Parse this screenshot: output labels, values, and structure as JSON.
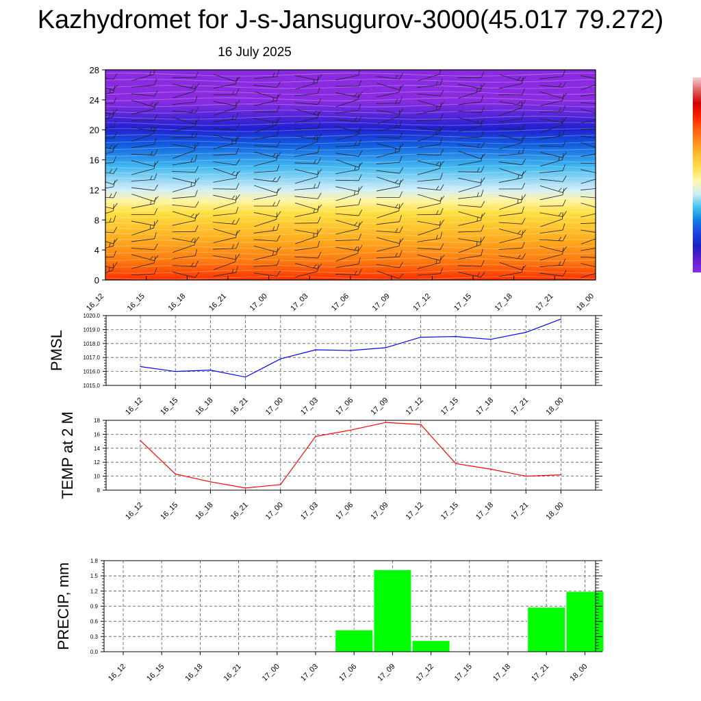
{
  "title": "Kazhydromet for J-s-Jansugurov-3000(45.017 79.272)",
  "subtitle": "16 July 2025",
  "time_labels": [
    "16_12",
    "16_15",
    "16_18",
    "16_21",
    "17_00",
    "17_03",
    "17_06",
    "17_09",
    "17_12",
    "17_15",
    "17_18",
    "17_21",
    "18_00"
  ],
  "colors": {
    "pmsl_line": "#0000ff",
    "temp_line": "#ff0000",
    "precip_bar": "#00ff00",
    "grid": "#555555"
  },
  "chart_data": [
    {
      "type": "heatmap",
      "description_ref": "height-time section",
      "x": [
        "16_12",
        "16_15",
        "16_18",
        "16_21",
        "17_00",
        "17_03",
        "17_06",
        "17_09",
        "17_12",
        "17_15",
        "17_18",
        "17_21",
        "18_00"
      ],
      "ylim": [
        0,
        28
      ],
      "yticks": [
        "0",
        "4",
        "8",
        "12",
        "16",
        "20",
        "24",
        "28"
      ],
      "color_bands_bottom_to_top": [
        "#ff3000",
        "#ff7a10",
        "#ffb020",
        "#ffe040",
        "#fff4a0",
        "#d0eef8",
        "#40b8f0",
        "#1060e0",
        "#2020d0",
        "#8a2be2"
      ],
      "colorbar_colors_top_to_bottom": [
        "#f4d0d0",
        "#e06060",
        "#d00000",
        "#ff2000",
        "#ff6010",
        "#ff9020",
        "#ffc030",
        "#ffe050",
        "#fff8b0",
        "#c8ecf8",
        "#40c0f0",
        "#1080e0",
        "#2040e0",
        "#2020c0",
        "#6020d0",
        "#8a2be2"
      ]
    },
    {
      "type": "line",
      "ylabel": "PMSL",
      "ylim": [
        1015.0,
        1020.0
      ],
      "yticks": [
        "1015.0",
        "1016.0",
        "1017.0",
        "1018.0",
        "1019.0",
        "1020.0"
      ],
      "x": [
        "16_12",
        "16_15",
        "16_18",
        "16_21",
        "17_00",
        "17_03",
        "17_06",
        "17_09",
        "17_12",
        "17_15",
        "17_18",
        "17_21",
        "18_00"
      ],
      "series": [
        {
          "values": [
            1016.35,
            1016.0,
            1016.1,
            1015.6,
            1016.9,
            1017.55,
            1017.5,
            1017.7,
            1018.45,
            1018.5,
            1018.3,
            1018.8,
            1019.75
          ]
        }
      ],
      "grid": true
    },
    {
      "type": "line",
      "ylabel": "TEMP at 2 M",
      "ylim": [
        8,
        18
      ],
      "yticks": [
        "8",
        "10",
        "12",
        "14",
        "16",
        "18"
      ],
      "x": [
        "16_12",
        "16_15",
        "16_18",
        "16_21",
        "17_00",
        "17_03",
        "17_06",
        "17_09",
        "17_12",
        "17_15",
        "17_18",
        "17_21",
        "18_00"
      ],
      "series": [
        {
          "values": [
            15.1,
            10.3,
            9.2,
            8.3,
            8.8,
            15.7,
            16.6,
            17.7,
            17.4,
            11.8,
            11.0,
            10.0,
            10.2
          ]
        }
      ],
      "grid": true
    },
    {
      "type": "bar",
      "ylabel": "PRECIP, mm",
      "ylim": [
        0.0,
        1.8
      ],
      "yticks": [
        "0.0",
        "0.3",
        "0.6",
        "0.9",
        "1.2",
        "1.5",
        "1.8"
      ],
      "categories": [
        "16_12",
        "16_15",
        "16_18",
        "16_21",
        "17_00",
        "17_03",
        "17_06",
        "17_09",
        "17_12",
        "17_15",
        "17_18",
        "17_21",
        "18_00"
      ],
      "values": [
        0,
        0,
        0,
        0,
        0,
        0,
        0.43,
        1.62,
        0.22,
        0,
        0,
        0.88,
        1.19
      ],
      "grid": true
    }
  ]
}
